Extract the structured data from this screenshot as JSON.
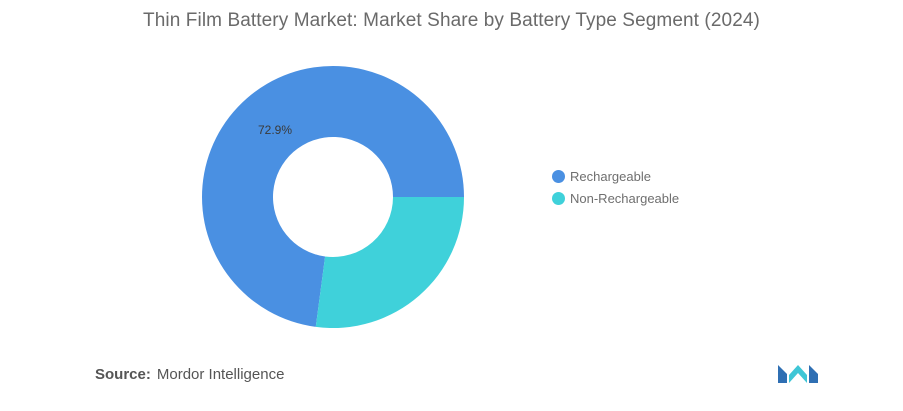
{
  "chart_data": {
    "type": "pie",
    "title": "Thin Film Battery Market: Market Share by Battery Type Segment (2024)",
    "donut": true,
    "slices": [
      {
        "label": "Rechargeable",
        "value": 72.9,
        "color": "#4a90e2",
        "data_label": "72.9%"
      },
      {
        "label": "Non-Rechargeable",
        "value": 27.1,
        "color": "#3fd1da",
        "data_label": ""
      }
    ],
    "legend_position": "right"
  },
  "source": {
    "label": "Source:",
    "text": "Mordor Intelligence"
  },
  "logo": {
    "icon": "mordor-intelligence-logo",
    "colors": [
      "#2f6fb3",
      "#3fc6d6"
    ]
  }
}
